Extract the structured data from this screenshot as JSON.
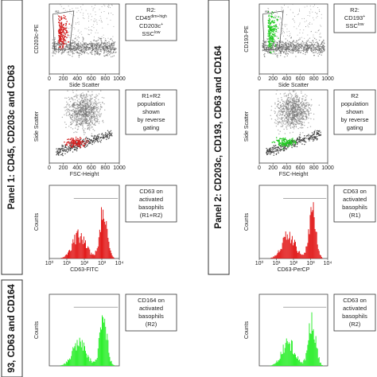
{
  "panels": [
    {
      "label": "Panel 1: CD45, CD203c and CD63",
      "plots": [
        {
          "kind": "scatter",
          "color": "#d42020",
          "gate": "R2",
          "y_label": "CD203c-PE",
          "x_label": "Side Scatter",
          "x_ticks": [
            "0",
            "200",
            "400",
            "600",
            "800",
            "1000"
          ],
          "note": [
            [
              "R2:"
            ],
            [
              "CD45",
              "dim+high"
            ],
            [
              "CD203c",
              "+"
            ],
            [
              "SSC",
              "low"
            ]
          ]
        },
        {
          "kind": "backgate",
          "color": "#d42020",
          "y_label": "Side Scatter",
          "x_label": "FSC-Height",
          "x_ticks": [
            "0",
            "200",
            "400",
            "600",
            "800",
            "1000"
          ],
          "note": [
            [
              "R1+R2"
            ],
            [
              "population"
            ],
            [
              "shown"
            ],
            [
              "by reverse"
            ],
            [
              "gating"
            ]
          ]
        },
        {
          "kind": "histogram",
          "color": "#e01010",
          "y_label": "Counts",
          "x_label": "CD63-FITC",
          "x_ticks": [
            "10⁰",
            "10¹",
            "10²",
            "10³",
            "10⁴"
          ],
          "note": [
            [
              "CD63 on"
            ],
            [
              "activated"
            ],
            [
              "basophils"
            ],
            [
              "(R1+R2)"
            ]
          ]
        }
      ]
    },
    {
      "label": "Panel 2: CD203c, CD193, CD63 and CD164",
      "plots": [
        {
          "kind": "scatter",
          "color": "#22cc22",
          "gate": "R2",
          "y_label": "CD193-PE",
          "x_label": "Side Scatter",
          "x_ticks": [
            "0",
            "200",
            "400",
            "600",
            "800",
            "1000"
          ],
          "note": [
            [
              "R2:"
            ],
            [
              "CD193",
              "+"
            ],
            [
              "SSC",
              "low"
            ]
          ]
        },
        {
          "kind": "backgate",
          "color": "#22cc22",
          "y_label": "Side Scatter",
          "x_label": "FSC-Height",
          "x_ticks": [
            "0",
            "200",
            "400",
            "600",
            "800",
            "1000"
          ],
          "note": [
            [
              "R2"
            ],
            [
              "population"
            ],
            [
              "shown"
            ],
            [
              "by reverse"
            ],
            [
              "gating"
            ]
          ]
        },
        {
          "kind": "histogram",
          "color": "#e01010",
          "y_label": "Counts",
          "x_label": "CD63-PerCP",
          "x_ticks": [
            "10⁰",
            "10¹",
            "10²",
            "10³",
            "10⁴"
          ],
          "note": [
            [
              "CD63 on"
            ],
            [
              "activated"
            ],
            [
              "basophils"
            ],
            [
              "(R1)"
            ]
          ]
        }
      ]
    },
    {
      "label": "93, CD63 and CD164",
      "plots": [
        {
          "kind": "histogram",
          "color": "#22ee22",
          "y_label": "Counts",
          "note": [
            [
              "CD164 on"
            ],
            [
              "activated"
            ],
            [
              "basophils"
            ],
            [
              "(R2)"
            ]
          ]
        },
        {
          "kind": "histogram",
          "color": "#22ee22",
          "y_label": "Counts",
          "note": [
            [
              "CD63 on"
            ],
            [
              "activated"
            ],
            [
              "basophils"
            ],
            [
              "(R2)"
            ]
          ]
        }
      ]
    }
  ]
}
